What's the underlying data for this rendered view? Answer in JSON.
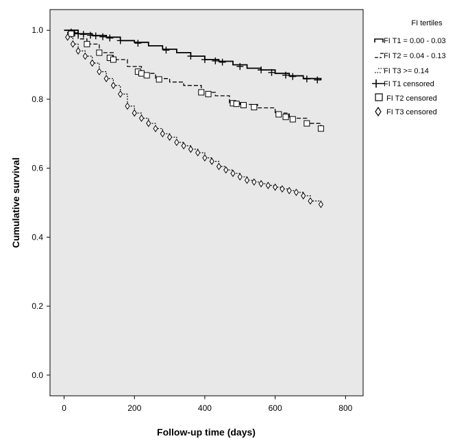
{
  "chart_data": {
    "type": "line",
    "title": "",
    "xlabel": "Follow-up time (days)",
    "ylabel": "Cumulative survival",
    "xlim": [
      -40,
      850
    ],
    "ylim": [
      -0.06,
      1.06
    ],
    "x_ticks": [
      0,
      200,
      400,
      600,
      800
    ],
    "x_tick_labels": [
      "0",
      "200",
      "400",
      "600",
      "800"
    ],
    "y_ticks": [
      0.0,
      0.2,
      0.4,
      0.6,
      0.8,
      1.0
    ],
    "y_tick_labels": [
      "0.0",
      "0.2",
      "0.4",
      "0.6",
      "0.8",
      "1.0"
    ],
    "grid": false,
    "plot_background": "#e8e8e8",
    "legend": {
      "title": "FI tertiles",
      "placement": "right",
      "entries": [
        "FI T1 = 0.00 - 0.03",
        "FI T2 = 0.04 - 0.13",
        "FI T3 >= 0.14",
        "FI T1 censored",
        "FI T2 censored",
        "FI T3 censored"
      ]
    },
    "series": [
      {
        "name": "FI T1 = 0.00 - 0.03",
        "style": "solid",
        "censor_marker": "plus",
        "x": [
          0,
          40,
          80,
          120,
          160,
          200,
          240,
          280,
          320,
          360,
          400,
          440,
          480,
          520,
          560,
          600,
          640,
          680,
          730
        ],
        "y": [
          1.0,
          0.99,
          0.985,
          0.98,
          0.97,
          0.965,
          0.955,
          0.945,
          0.935,
          0.925,
          0.915,
          0.91,
          0.9,
          0.89,
          0.885,
          0.875,
          0.868,
          0.86,
          0.855
        ],
        "censored_x": [
          20,
          30,
          40,
          55,
          75,
          90,
          110,
          130,
          160,
          210,
          290,
          360,
          400,
          430,
          450,
          500,
          560,
          590,
          630,
          650,
          690,
          720
        ]
      },
      {
        "name": "FI T2 = 0.04 - 0.13",
        "style": "dashed",
        "censor_marker": "square",
        "x": [
          0,
          20,
          40,
          65,
          100,
          140,
          180,
          220,
          260,
          300,
          340,
          390,
          430,
          470,
          500,
          550,
          600,
          640,
          690,
          730
        ],
        "y": [
          1.0,
          0.99,
          0.975,
          0.96,
          0.935,
          0.915,
          0.895,
          0.875,
          0.86,
          0.85,
          0.84,
          0.82,
          0.81,
          0.79,
          0.785,
          0.775,
          0.76,
          0.745,
          0.73,
          0.715
        ],
        "censored_x": [
          20,
          65,
          100,
          130,
          140,
          210,
          220,
          235,
          270,
          390,
          410,
          480,
          490,
          510,
          540,
          610,
          630,
          650,
          690,
          730
        ]
      },
      {
        "name": "FI T3 >= 0.14",
        "style": "dotted",
        "censor_marker": "diamond",
        "x": [
          0,
          10,
          25,
          40,
          60,
          80,
          100,
          120,
          140,
          160,
          180,
          200,
          220,
          240,
          260,
          280,
          300,
          320,
          340,
          360,
          380,
          400,
          420,
          440,
          460,
          480,
          500,
          520,
          540,
          560,
          580,
          600,
          620,
          640,
          660,
          680,
          700,
          730
        ],
        "y": [
          1.0,
          0.98,
          0.96,
          0.94,
          0.925,
          0.905,
          0.88,
          0.86,
          0.84,
          0.815,
          0.78,
          0.76,
          0.745,
          0.73,
          0.715,
          0.7,
          0.69,
          0.675,
          0.665,
          0.655,
          0.645,
          0.63,
          0.62,
          0.605,
          0.595,
          0.585,
          0.575,
          0.565,
          0.56,
          0.555,
          0.55,
          0.545,
          0.54,
          0.535,
          0.53,
          0.52,
          0.505,
          0.495
        ]
      }
    ]
  }
}
